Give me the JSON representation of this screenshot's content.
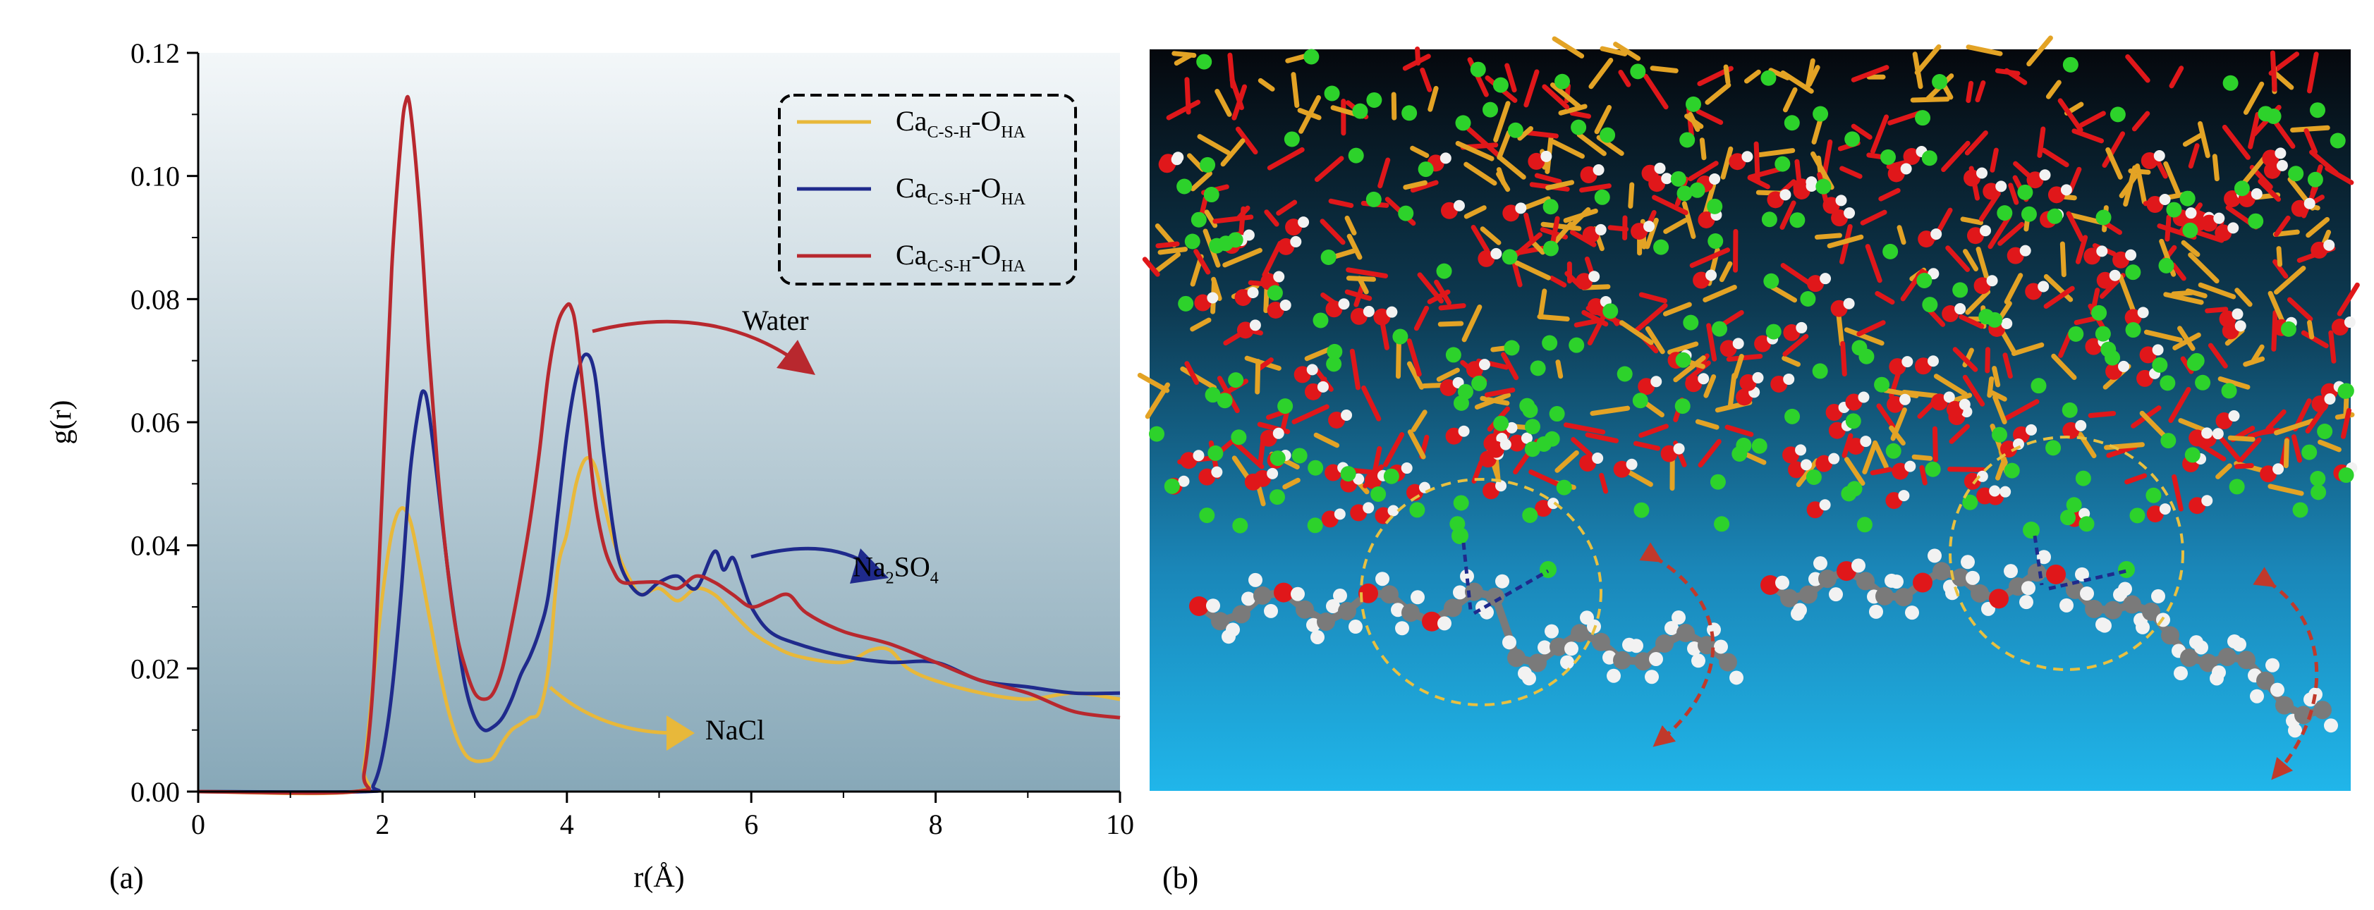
{
  "chart_data": {
    "type": "line",
    "panel_label": "(a)",
    "xlabel": "r(Å)",
    "ylabel": "g(r)",
    "xlim": [
      0,
      10
    ],
    "ylim": [
      0,
      0.12
    ],
    "xticks": [
      "0",
      "2",
      "4",
      "6",
      "8",
      "10"
    ],
    "yticks": [
      "0.00",
      "0.02",
      "0.04",
      "0.06",
      "0.08",
      "0.10",
      "0.12"
    ],
    "legend_position": "top-right",
    "series": [
      {
        "base": "Ca",
        "base_sub": "C-S-H",
        "sep": "-O",
        "end_sub": "HA",
        "color": "#E8B83A",
        "x": [
          0,
          1.7,
          1.8,
          1.9,
          2.0,
          2.1,
          2.2,
          2.3,
          2.4,
          2.5,
          2.6,
          2.7,
          2.8,
          2.9,
          3.0,
          3.1,
          3.2,
          3.3,
          3.4,
          3.5,
          3.6,
          3.7,
          3.8,
          3.9,
          4.0,
          4.1,
          4.2,
          4.3,
          4.4,
          4.5,
          4.6,
          4.7,
          4.8,
          5.0,
          5.2,
          5.4,
          5.6,
          5.8,
          6.0,
          6.2,
          6.5,
          7.0,
          7.3,
          7.5,
          7.7,
          8.0,
          8.5,
          9.0,
          9.5,
          10
        ],
        "y": [
          0,
          0,
          0.004,
          0.018,
          0.032,
          0.042,
          0.046,
          0.044,
          0.037,
          0.029,
          0.021,
          0.014,
          0.009,
          0.006,
          0.005,
          0.005,
          0.0055,
          0.008,
          0.01,
          0.011,
          0.012,
          0.013,
          0.02,
          0.036,
          0.042,
          0.05,
          0.054,
          0.053,
          0.047,
          0.041,
          0.037,
          0.034,
          0.032,
          0.033,
          0.031,
          0.033,
          0.032,
          0.029,
          0.026,
          0.024,
          0.022,
          0.021,
          0.023,
          0.023,
          0.02,
          0.018,
          0.016,
          0.015,
          0.016,
          0.015
        ]
      },
      {
        "base": "Ca",
        "base_sub": "C-S-H",
        "sep": "-O",
        "end_sub": "HA",
        "color": "#1F2A8C",
        "x": [
          0,
          1.8,
          1.9,
          2.0,
          2.1,
          2.2,
          2.3,
          2.4,
          2.45,
          2.5,
          2.6,
          2.7,
          2.8,
          2.9,
          3.0,
          3.1,
          3.2,
          3.3,
          3.4,
          3.5,
          3.6,
          3.7,
          3.8,
          3.9,
          4.0,
          4.1,
          4.2,
          4.3,
          4.4,
          4.5,
          4.6,
          4.8,
          5.0,
          5.2,
          5.4,
          5.6,
          5.7,
          5.8,
          5.9,
          6.0,
          6.2,
          6.5,
          7.0,
          7.5,
          8.0,
          8.5,
          9.0,
          9.5,
          10
        ],
        "y": [
          0,
          0,
          0.001,
          0.006,
          0.016,
          0.032,
          0.052,
          0.063,
          0.065,
          0.062,
          0.05,
          0.037,
          0.026,
          0.017,
          0.012,
          0.01,
          0.0105,
          0.012,
          0.015,
          0.019,
          0.022,
          0.026,
          0.032,
          0.045,
          0.058,
          0.067,
          0.071,
          0.068,
          0.055,
          0.043,
          0.036,
          0.032,
          0.034,
          0.035,
          0.033,
          0.039,
          0.036,
          0.038,
          0.034,
          0.03,
          0.026,
          0.024,
          0.022,
          0.021,
          0.021,
          0.018,
          0.017,
          0.016,
          0.016
        ]
      },
      {
        "base": "Ca",
        "base_sub": "C-S-H",
        "sep": "-O",
        "end_sub": "HA",
        "color": "#B8282E",
        "x": [
          0,
          1.7,
          1.8,
          1.9,
          2.0,
          2.1,
          2.2,
          2.25,
          2.3,
          2.4,
          2.5,
          2.6,
          2.7,
          2.8,
          2.9,
          3.0,
          3.1,
          3.2,
          3.3,
          3.4,
          3.5,
          3.6,
          3.7,
          3.8,
          3.9,
          4.0,
          4.05,
          4.1,
          4.2,
          4.3,
          4.4,
          4.5,
          4.6,
          4.8,
          5.0,
          5.2,
          5.4,
          5.6,
          5.8,
          6.0,
          6.2,
          6.4,
          6.6,
          7.0,
          7.5,
          8.0,
          8.5,
          9.0,
          9.5,
          10
        ],
        "y": [
          0,
          0,
          0.003,
          0.018,
          0.05,
          0.085,
          0.106,
          0.112,
          0.111,
          0.095,
          0.072,
          0.052,
          0.037,
          0.026,
          0.02,
          0.016,
          0.015,
          0.016,
          0.02,
          0.027,
          0.035,
          0.044,
          0.055,
          0.068,
          0.076,
          0.079,
          0.0785,
          0.075,
          0.062,
          0.048,
          0.04,
          0.036,
          0.034,
          0.034,
          0.034,
          0.033,
          0.035,
          0.034,
          0.032,
          0.03,
          0.031,
          0.032,
          0.029,
          0.026,
          0.024,
          0.021,
          0.018,
          0.016,
          0.013,
          0.012
        ]
      }
    ],
    "annotations": [
      {
        "text": "Water",
        "color": "#B8282E",
        "x": 5.9,
        "y": 0.075
      },
      {
        "text": "Na",
        "sub1": "2",
        "mid": "SO",
        "sub2": "4",
        "color": "#1F2A8C",
        "x": 7.1,
        "y": 0.035
      },
      {
        "text": "NaCl",
        "color": "#E8B83A",
        "x": 5.5,
        "y": 0.0085
      }
    ]
  },
  "panel_b": {
    "panel_label": "(b)"
  },
  "colors": {
    "plot_bg_top": "#F3F7F9",
    "plot_bg_bottom": "#87A8B8",
    "sim_bg_top": "#050a0f",
    "sim_bg_bottom": "#1EB2E8",
    "silicon": "#E3A325",
    "oxygen": "#E0171A",
    "calcium": "#2DD22B",
    "hydrogen": "#F2F2F2",
    "carbon": "#7A7A7A"
  }
}
